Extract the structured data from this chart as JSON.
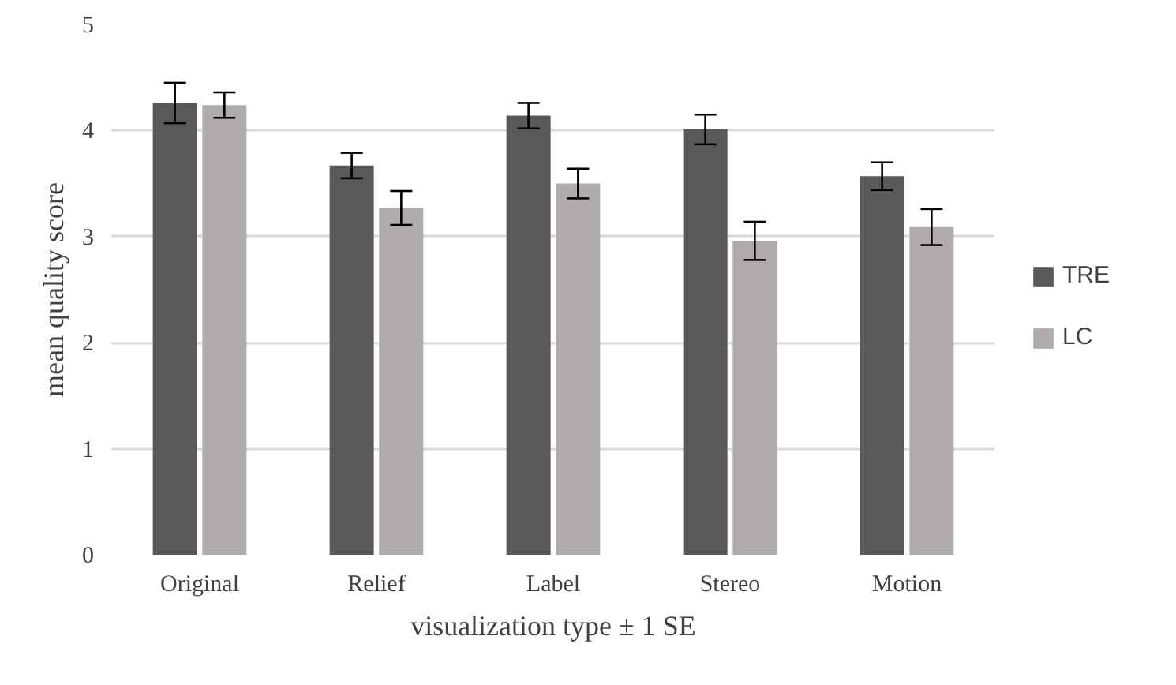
{
  "chart_data": {
    "type": "bar",
    "xlabel": "visualization type ± 1 SE",
    "ylabel": "mean quality score",
    "categories": [
      "Original",
      "Relief",
      "Label",
      "Stereo",
      "Motion"
    ],
    "series": [
      {
        "name": "TRE",
        "color": "#595959",
        "values": [
          4.26,
          3.67,
          4.14,
          4.01,
          3.57
        ],
        "errors": [
          0.19,
          0.12,
          0.12,
          0.14,
          0.13
        ]
      },
      {
        "name": "LC",
        "color": "#afabab",
        "values": [
          4.24,
          3.27,
          3.5,
          2.96,
          3.09
        ],
        "errors": [
          0.12,
          0.16,
          0.14,
          0.18,
          0.17
        ]
      }
    ],
    "ylim": [
      0,
      5
    ],
    "yticks": [
      0,
      1,
      2,
      3,
      4,
      5
    ],
    "grid": "y",
    "legend": "right"
  }
}
